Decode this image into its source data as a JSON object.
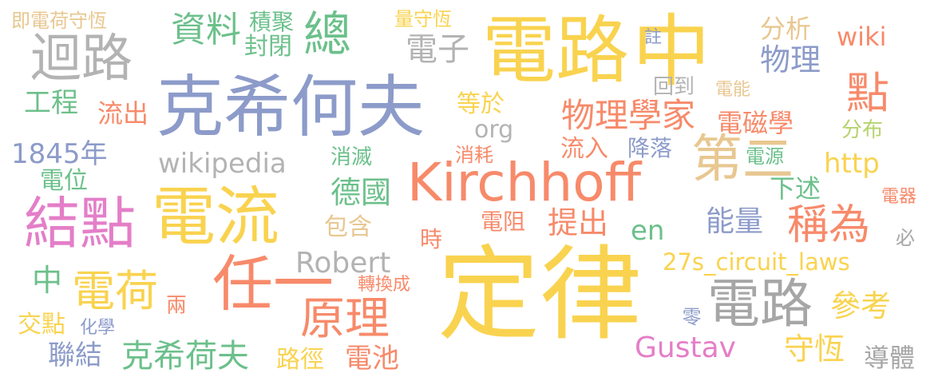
{
  "words": {
    "dinglu": {
      "text": "定律",
      "color": "#f9d34f"
    },
    "dianlu_big": {
      "text": "電路",
      "color": "#f9d34f"
    },
    "zhong_big": {
      "text": "中",
      "color": "#f9d34f"
    },
    "kexihefu": {
      "text": "克希何夫",
      "color": "#8c9bc9"
    },
    "kirchhoff": {
      "text": "Kirchhoff",
      "color": "#f78a6a"
    },
    "dianliu": {
      "text": "電流",
      "color": "#f9d34f"
    },
    "jiedian_big": {
      "text": "結點",
      "color": "#e47ec8"
    },
    "renyi": {
      "text": "任一",
      "color": "#f78a6a"
    },
    "huilu": {
      "text": "迴路",
      "color": "#b3b3b3"
    },
    "dier": {
      "text": "第二",
      "color": "#e8c790"
    },
    "dianlu_gray": {
      "text": "電路",
      "color": "#a6a6a6"
    },
    "yuanli": {
      "text": "原理",
      "color": "#f78a6a"
    },
    "dianhe": {
      "text": "電荷",
      "color": "#f9d34f"
    },
    "zong": {
      "text": "總",
      "color": "#6cc08b"
    },
    "dian_right": {
      "text": "點",
      "color": "#f78a6a"
    },
    "chengwei": {
      "text": "稱為",
      "color": "#f78a6a"
    },
    "robert": {
      "text": "Robert",
      "color": "#b3b3b3"
    },
    "wikipedia": {
      "text": "wikipedia",
      "color": "#b3b3b3"
    },
    "gustav": {
      "text": "Gustav",
      "color": "#e47ec8"
    },
    "circuit_laws": {
      "text": "27s_circuit_laws",
      "color": "#f9d34f"
    },
    "wuli_xuejia": {
      "text": "物理學家",
      "color": "#f78a6a"
    },
    "kexiheifu2": {
      "text": "克希荷夫",
      "color": "#6cc08b"
    },
    "ziliao": {
      "text": "資料",
      "color": "#6cc08b"
    },
    "year1845": {
      "text": "1845年",
      "color": "#8c9bc9"
    },
    "http": {
      "text": "http",
      "color": "#f9d34f"
    },
    "wiki": {
      "text": "wiki",
      "color": "#f78a6a"
    },
    "dianci": {
      "text": "電磁學",
      "color": "#f78a6a"
    },
    "deguo": {
      "text": "德國",
      "color": "#6cc08b"
    },
    "nengliang": {
      "text": "能量",
      "color": "#8c9bc9"
    },
    "shouheng": {
      "text": "守恆",
      "color": "#f9d34f"
    },
    "cankao": {
      "text": "參考",
      "color": "#f9d34f"
    },
    "wuli": {
      "text": "物理",
      "color": "#8c9bc9"
    },
    "dianzi": {
      "text": "電子",
      "color": "#b3b3b3"
    },
    "gongcheng": {
      "text": "工程",
      "color": "#6cc08b"
    },
    "liuchu": {
      "text": "流出",
      "color": "#f78a6a"
    },
    "org": {
      "text": "org",
      "color": "#b3b3b3"
    },
    "dengyu": {
      "text": "等於",
      "color": "#f9d34f"
    },
    "en": {
      "text": "en",
      "color": "#6cc08b"
    },
    "tichu": {
      "text": "提出",
      "color": "#f78a6a"
    },
    "lianjie": {
      "text": "聯結",
      "color": "#8c9bc9"
    },
    "zhong_small": {
      "text": "中",
      "color": "#6cc08b"
    },
    "daoti": {
      "text": "導體",
      "color": "#a6a6a6"
    },
    "dianchi": {
      "text": "電池",
      "color": "#f78a6a"
    },
    "lujing": {
      "text": "路徑",
      "color": "#f9d34f"
    },
    "jiaodian": {
      "text": "交點",
      "color": "#f9d34f"
    },
    "huaxue": {
      "text": "化學",
      "color": "#8c9bc9"
    },
    "liang": {
      "text": "兩",
      "color": "#f78a6a"
    },
    "zhuanhuan": {
      "text": "轉換成",
      "color": "#f78a6a"
    },
    "ling": {
      "text": "零",
      "color": "#8c9bc9"
    },
    "fengbi": {
      "text": "封閉",
      "color": "#6cc08b"
    },
    "jiju": {
      "text": "積聚",
      "color": "#6cc08b"
    },
    "liangshouheng": {
      "text": "量守恆",
      "color": "#f9d34f"
    },
    "jidianhe": {
      "text": "即電荷守恆",
      "color": "#e8c790"
    },
    "fenxi": {
      "text": "分析",
      "color": "#e8c790"
    },
    "zhu": {
      "text": "註",
      "color": "#8c9bc9"
    },
    "huidao": {
      "text": "回到",
      "color": "#b3b3b3"
    },
    "dianneng": {
      "text": "電能",
      "color": "#e8c790"
    },
    "fenbu": {
      "text": "分布",
      "color": "#b6d36c"
    },
    "xiaomie": {
      "text": "消滅",
      "color": "#6cc08b"
    },
    "xiaohao": {
      "text": "消耗",
      "color": "#f78a6a"
    },
    "liuru": {
      "text": "流入",
      "color": "#f78a6a"
    },
    "jiangluo": {
      "text": "降落",
      "color": "#8c9bc9"
    },
    "dianyuan": {
      "text": "電源",
      "color": "#6cc08b"
    },
    "xiashu": {
      "text": "下述",
      "color": "#6cc08b"
    },
    "dianqi": {
      "text": "電器",
      "color": "#f78a6a"
    },
    "dianwei": {
      "text": "電位",
      "color": "#6cc08b"
    },
    "baohan": {
      "text": "包含",
      "color": "#e8c790"
    },
    "dianzu": {
      "text": "電阻",
      "color": "#f78a6a"
    },
    "shi": {
      "text": "時",
      "color": "#f78a6a"
    },
    "bi": {
      "text": "必",
      "color": "#a6a6a6"
    }
  }
}
